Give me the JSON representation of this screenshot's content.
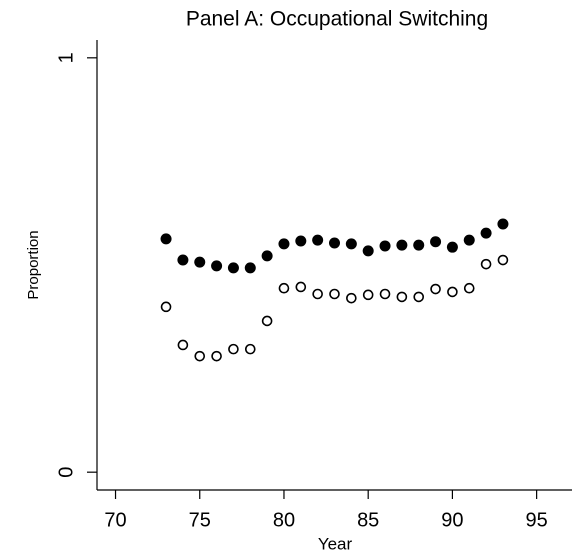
{
  "chart_data": {
    "type": "scatter",
    "title": "Panel A: Occupational Switching",
    "x_label": "Year",
    "y_label": "Proportion",
    "xlim": [
      68.9,
      97.1
    ],
    "xticks": [
      70,
      75,
      80,
      85,
      90,
      95
    ],
    "ylim": [
      -0.043,
      1.043
    ],
    "yticks": [
      0,
      1
    ],
    "series": [
      {
        "color": "#000000",
        "marker": "filled",
        "x": [
          73,
          74,
          75,
          76,
          77,
          78,
          79,
          80,
          81,
          82,
          83,
          84,
          85,
          86,
          87,
          88,
          89,
          90,
          91,
          92,
          93
        ],
        "values": [
          0.563,
          0.512,
          0.507,
          0.498,
          0.493,
          0.493,
          0.522,
          0.551,
          0.558,
          0.56,
          0.553,
          0.551,
          0.534,
          0.546,
          0.548,
          0.548,
          0.556,
          0.543,
          0.56,
          0.577,
          0.599
        ]
      },
      {
        "color": "#000000",
        "marker": "hollow",
        "x": [
          73,
          74,
          75,
          76,
          77,
          78,
          79,
          80,
          81,
          82,
          83,
          84,
          85,
          86,
          87,
          88,
          89,
          90,
          91,
          92,
          93
        ],
        "values": [
          0.399,
          0.307,
          0.28,
          0.28,
          0.297,
          0.297,
          0.365,
          0.444,
          0.447,
          0.43,
          0.43,
          0.42,
          0.428,
          0.43,
          0.423,
          0.423,
          0.442,
          0.435,
          0.444,
          0.502,
          0.512
        ]
      }
    ]
  }
}
